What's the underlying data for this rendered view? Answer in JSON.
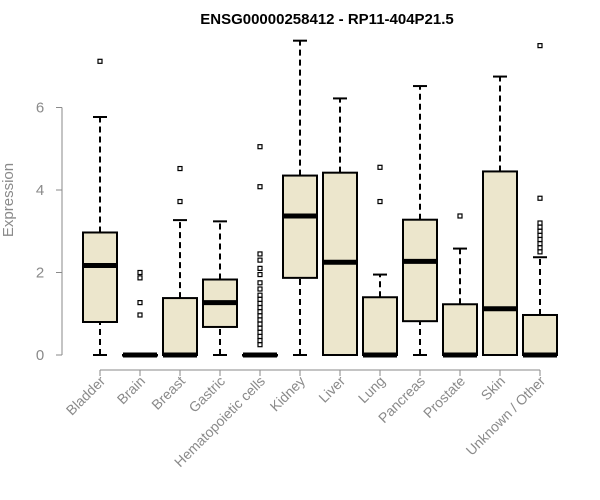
{
  "chart_data": {
    "type": "boxplot",
    "title": "ENSG00000258412 - RP11-404P21.5",
    "ylabel": "Expression",
    "xlabel": "",
    "ylim": [
      0,
      7.6
    ],
    "yticks": [
      0,
      2,
      4,
      6
    ],
    "grid": false,
    "colors": {
      "box_fill": "#ece6cc",
      "stroke": "#000000",
      "axis_text": "#8a8a8a",
      "axis_line": "#8a8a8a"
    },
    "categories": [
      "Bladder",
      "Brain",
      "Breast",
      "Gastric",
      "Hematopoietic cells",
      "Kidney",
      "Liver",
      "Lung",
      "Pancreas",
      "Prostate",
      "Skin",
      "Unknown / Other"
    ],
    "boxes": [
      {
        "category": "Bladder",
        "whisker_low": 0,
        "q1": 0.8,
        "median": 2.17,
        "q3": 2.97,
        "whisker_high": 5.77,
        "outliers": [
          7.12
        ]
      },
      {
        "category": "Brain",
        "whisker_low": 0,
        "q1": 0,
        "median": 0,
        "q3": 0,
        "whisker_high": 0,
        "outliers": [
          0.97,
          1.27,
          1.87,
          2.0
        ]
      },
      {
        "category": "Breast",
        "whisker_low": 0,
        "q1": 0,
        "median": 0,
        "q3": 1.38,
        "whisker_high": 3.27,
        "outliers": [
          3.72,
          4.52
        ]
      },
      {
        "category": "Gastric",
        "whisker_low": 0,
        "q1": 0.68,
        "median": 1.27,
        "q3": 1.83,
        "whisker_high": 3.24,
        "outliers": []
      },
      {
        "category": "Hematopoietic cells",
        "whisker_low": 0,
        "q1": 0,
        "median": 0,
        "q3": 0,
        "whisker_high": 0,
        "outliers": [
          0.25,
          0.35,
          0.45,
          0.55,
          0.65,
          0.75,
          0.85,
          0.95,
          1.05,
          1.15,
          1.25,
          1.35,
          1.45,
          1.6,
          1.75,
          1.95,
          2.1,
          2.3,
          2.45,
          4.08,
          5.05
        ]
      },
      {
        "category": "Kidney",
        "whisker_low": 0,
        "q1": 1.87,
        "median": 3.37,
        "q3": 4.35,
        "whisker_high": 7.62,
        "outliers": []
      },
      {
        "category": "Liver",
        "whisker_low": 0,
        "q1": 0,
        "median": 2.25,
        "q3": 4.42,
        "whisker_high": 6.22,
        "outliers": []
      },
      {
        "category": "Lung",
        "whisker_low": 0,
        "q1": 0,
        "median": 0,
        "q3": 1.4,
        "whisker_high": 1.95,
        "outliers": [
          3.72,
          4.55
        ]
      },
      {
        "category": "Pancreas",
        "whisker_low": 0,
        "q1": 0.82,
        "median": 2.27,
        "q3": 3.28,
        "whisker_high": 6.52,
        "outliers": []
      },
      {
        "category": "Prostate",
        "whisker_low": 0,
        "q1": 0,
        "median": 0,
        "q3": 1.23,
        "whisker_high": 2.58,
        "outliers": [
          3.37
        ]
      },
      {
        "category": "Skin",
        "whisker_low": 0,
        "q1": 0,
        "median": 1.12,
        "q3": 4.45,
        "whisker_high": 6.75,
        "outliers": []
      },
      {
        "category": "Unknown / Other",
        "whisker_low": 0,
        "q1": 0,
        "median": 0,
        "q3": 0.97,
        "whisker_high": 2.37,
        "outliers": [
          2.5,
          2.6,
          2.7,
          2.8,
          2.9,
          3.0,
          3.1,
          3.2,
          3.8,
          7.5
        ]
      }
    ]
  }
}
